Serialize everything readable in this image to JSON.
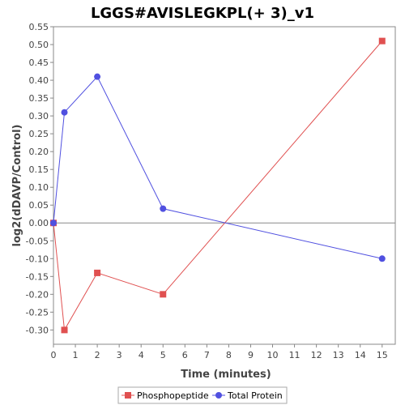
{
  "chart_data": {
    "type": "line",
    "title": "LGGS#AVISLEGKPL(+ 3)_v1",
    "xlabel": "Time (minutes)",
    "ylabel": "log2(dDAVP/Control)",
    "xlim": [
      0,
      15.6
    ],
    "ylim": [
      -0.34,
      0.55
    ],
    "x_ticks": [
      0,
      1,
      2,
      3,
      4,
      5,
      6,
      7,
      8,
      9,
      10,
      11,
      12,
      13,
      14,
      15
    ],
    "y_ticks": [
      "0.55",
      "0.50",
      "0.45",
      "0.40",
      "0.35",
      "0.30",
      "0.25",
      "0.20",
      "0.15",
      "0.10",
      "0.05",
      "0.00",
      "-0.05",
      "-0.10",
      "-0.15",
      "-0.20",
      "-0.25",
      "-0.30"
    ],
    "legend_position": "bottom",
    "series": [
      {
        "name": "Phosphopeptide",
        "color": "#e05050",
        "marker": "square",
        "x": [
          0,
          0.5,
          2,
          5,
          15
        ],
        "y": [
          0.0,
          -0.3,
          -0.14,
          -0.2,
          0.51
        ]
      },
      {
        "name": "Total Protein",
        "color": "#5050e0",
        "marker": "circle",
        "x": [
          0,
          0.5,
          2,
          5,
          15
        ],
        "y": [
          0.0,
          0.31,
          0.41,
          0.04,
          -0.1
        ]
      }
    ]
  }
}
